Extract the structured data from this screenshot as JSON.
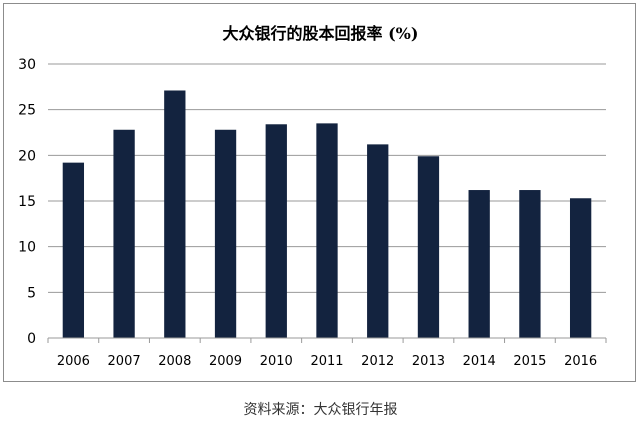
{
  "chart_data": {
    "type": "bar",
    "title": "大众银行的股本回报率 (%)",
    "categories": [
      "2006",
      "2007",
      "2008",
      "2009",
      "2010",
      "2011",
      "2012",
      "2013",
      "2014",
      "2015",
      "2016"
    ],
    "values": [
      19.2,
      22.8,
      27.1,
      22.8,
      23.4,
      23.5,
      21.2,
      19.9,
      16.2,
      16.2,
      15.3
    ],
    "ylim": [
      0,
      30
    ],
    "yticks": [
      0,
      5,
      10,
      15,
      20,
      25,
      30
    ],
    "grid": true,
    "bar_color": "#13233f"
  },
  "source_note": "资料来源：大众银行年报"
}
